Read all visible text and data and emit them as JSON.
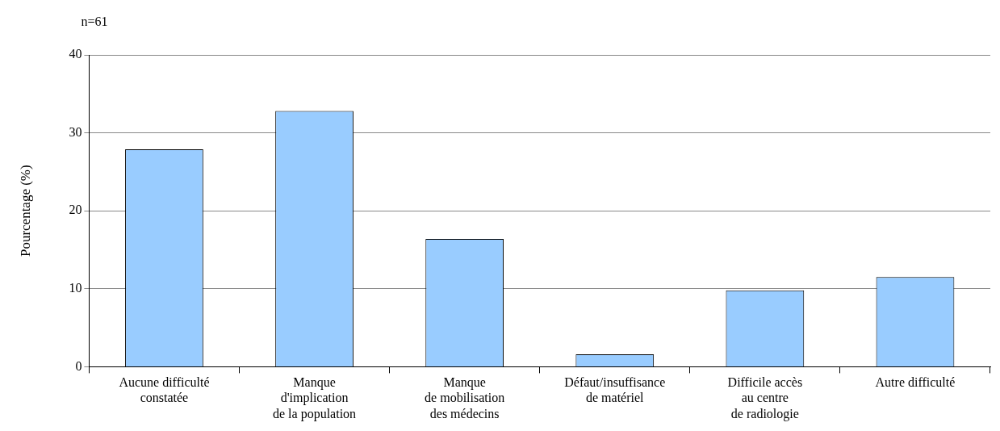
{
  "chart_data": {
    "type": "bar",
    "ylabel": "Pourcentage (%)",
    "annotations": [
      "n=61"
    ],
    "categories": [
      "Aucune difficulté\nconstatée",
      "Manque\nd'implication\nde la population",
      "Manque\nde mobilisation\ndes médecins",
      "Défaut/insuffisance\nde matériel",
      "Difficile accès\nau centre\nde radiologie",
      "Autre difficulté"
    ],
    "values": [
      27.9,
      32.8,
      16.4,
      1.6,
      9.8,
      11.5
    ],
    "color": "#99ccff",
    "ylim": [
      0,
      40
    ],
    "yticks": [
      0,
      10,
      20,
      30,
      40
    ],
    "grid": "y"
  }
}
